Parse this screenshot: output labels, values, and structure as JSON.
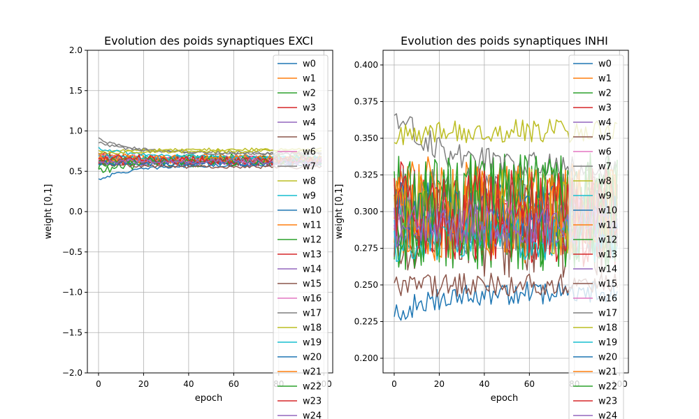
{
  "chart_data": [
    {
      "type": "line",
      "title": "Evolution des poids synaptiques EXCI",
      "xlabel": "epoch",
      "ylabel": "weight [0,1]",
      "xlim": [
        -4.95,
        103.95
      ],
      "ylim": [
        -2.0,
        2.0
      ],
      "x_ticks": [
        0,
        20,
        40,
        60,
        80,
        100
      ],
      "x_tick_labels": [
        "0",
        "20",
        "40",
        "60",
        "80",
        "100"
      ],
      "y_ticks": [
        -2.0,
        -1.5,
        -1.0,
        -0.5,
        0.0,
        0.5,
        1.0,
        1.5,
        2.0
      ],
      "y_tick_labels": [
        "−2.0",
        "−1.5",
        "−1.0",
        "−0.5",
        "0.0",
        "0.5",
        "1.0",
        "1.5",
        "2.0"
      ],
      "grid": true,
      "legend_position": "upper right, extends below axes",
      "x_range": [
        0,
        99
      ],
      "series": [
        {
          "name": "w0",
          "start": 0.4,
          "end": 0.58,
          "noise": 0.02
        },
        {
          "name": "w1",
          "start": 0.68,
          "end": 0.66,
          "noise": 0.05
        },
        {
          "name": "w2",
          "start": 0.5,
          "end": 0.62,
          "noise": 0.06
        },
        {
          "name": "w3",
          "start": 0.7,
          "end": 0.65,
          "noise": 0.05
        },
        {
          "name": "w4",
          "start": 0.62,
          "end": 0.6,
          "noise": 0.04
        },
        {
          "name": "w5",
          "start": 0.6,
          "end": 0.55,
          "noise": 0.02
        },
        {
          "name": "w6",
          "start": 0.66,
          "end": 0.65,
          "noise": 0.05
        },
        {
          "name": "w7",
          "start": 0.9,
          "end": 0.72,
          "noise": 0.02
        },
        {
          "name": "w8",
          "start": 0.74,
          "end": 0.77,
          "noise": 0.02
        },
        {
          "name": "w9",
          "start": 0.78,
          "end": 0.68,
          "noise": 0.02
        },
        {
          "name": "w10",
          "start": 0.62,
          "end": 0.63,
          "noise": 0.04
        },
        {
          "name": "w11",
          "start": 0.65,
          "end": 0.64,
          "noise": 0.05
        },
        {
          "name": "w12",
          "start": 0.58,
          "end": 0.66,
          "noise": 0.06
        },
        {
          "name": "w13",
          "start": 0.63,
          "end": 0.62,
          "noise": 0.05
        },
        {
          "name": "w14",
          "start": 0.64,
          "end": 0.63,
          "noise": 0.04
        },
        {
          "name": "w15",
          "start": 0.68,
          "end": 0.62,
          "noise": 0.06
        },
        {
          "name": "w16",
          "start": 0.66,
          "end": 0.64,
          "noise": 0.04
        },
        {
          "name": "w17",
          "start": 0.86,
          "end": 0.72,
          "noise": 0.02
        },
        {
          "name": "w18",
          "start": 0.72,
          "end": 0.75,
          "noise": 0.02
        },
        {
          "name": "w19",
          "start": 0.7,
          "end": 0.66,
          "noise": 0.03
        },
        {
          "name": "w20",
          "start": 0.6,
          "end": 0.6,
          "noise": 0.03
        },
        {
          "name": "w21",
          "start": 0.66,
          "end": 0.65,
          "noise": 0.05
        },
        {
          "name": "w22",
          "start": 0.62,
          "end": 0.63,
          "noise": 0.05
        },
        {
          "name": "w23",
          "start": 0.66,
          "end": 0.64,
          "noise": 0.06
        },
        {
          "name": "w24",
          "start": 0.62,
          "end": 0.62,
          "noise": 0.04
        }
      ]
    },
    {
      "type": "line",
      "title": "Evolution des poids synaptiques INHI",
      "xlabel": "epoch",
      "ylabel": "weight [0,1]",
      "xlim": [
        -4.95,
        103.95
      ],
      "ylim": [
        0.19,
        0.41
      ],
      "x_ticks": [
        0,
        20,
        40,
        60,
        80,
        100
      ],
      "x_tick_labels": [
        "0",
        "20",
        "40",
        "60",
        "80",
        "100"
      ],
      "y_ticks": [
        0.2,
        0.225,
        0.25,
        0.275,
        0.3,
        0.325,
        0.35,
        0.375,
        0.4
      ],
      "y_tick_labels": [
        "0.200",
        "0.225",
        "0.250",
        "0.275",
        "0.300",
        "0.325",
        "0.350",
        "0.375",
        "0.400"
      ],
      "grid": true,
      "legend_position": "upper right, extends below axes",
      "x_range": [
        0,
        99
      ],
      "series": [
        {
          "name": "w0",
          "start": 0.29,
          "end": 0.3,
          "noise": 0.02
        },
        {
          "name": "w1",
          "start": 0.31,
          "end": 0.3,
          "noise": 0.035
        },
        {
          "name": "w2",
          "start": 0.3,
          "end": 0.3,
          "noise": 0.04
        },
        {
          "name": "w3",
          "start": 0.31,
          "end": 0.29,
          "noise": 0.03
        },
        {
          "name": "w4",
          "start": 0.3,
          "end": 0.29,
          "noise": 0.015
        },
        {
          "name": "w5",
          "start": 0.29,
          "end": 0.29,
          "noise": 0.035
        },
        {
          "name": "w6",
          "start": 0.29,
          "end": 0.295,
          "noise": 0.015
        },
        {
          "name": "w7",
          "start": 0.37,
          "end": 0.33,
          "noise": 0.01
        },
        {
          "name": "w8",
          "start": 0.35,
          "end": 0.355,
          "noise": 0.008
        },
        {
          "name": "w9",
          "start": 0.3,
          "end": 0.29,
          "noise": 0.02
        },
        {
          "name": "w10",
          "start": 0.23,
          "end": 0.245,
          "noise": 0.008
        },
        {
          "name": "w11",
          "start": 0.3,
          "end": 0.3,
          "noise": 0.035
        },
        {
          "name": "w12",
          "start": 0.29,
          "end": 0.3,
          "noise": 0.04
        },
        {
          "name": "w13",
          "start": 0.3,
          "end": 0.29,
          "noise": 0.025
        },
        {
          "name": "w14",
          "start": 0.29,
          "end": 0.29,
          "noise": 0.012
        },
        {
          "name": "w15",
          "start": 0.25,
          "end": 0.25,
          "noise": 0.008
        },
        {
          "name": "w16",
          "start": 0.3,
          "end": 0.3,
          "noise": 0.012
        },
        {
          "name": "w17",
          "start": 0.3,
          "end": 0.3,
          "noise": 0.03
        },
        {
          "name": "w18",
          "start": 0.3,
          "end": 0.3,
          "noise": 0.03
        },
        {
          "name": "w19",
          "start": 0.28,
          "end": 0.28,
          "noise": 0.015
        },
        {
          "name": "w20",
          "start": 0.3,
          "end": 0.3,
          "noise": 0.02
        },
        {
          "name": "w21",
          "start": 0.3,
          "end": 0.3,
          "noise": 0.03
        },
        {
          "name": "w22",
          "start": 0.3,
          "end": 0.3,
          "noise": 0.04
        },
        {
          "name": "w23",
          "start": 0.3,
          "end": 0.3,
          "noise": 0.03
        },
        {
          "name": "w24",
          "start": 0.29,
          "end": 0.29,
          "noise": 0.015
        }
      ]
    }
  ],
  "colors": [
    "#1f77b4",
    "#ff7f0e",
    "#2ca02c",
    "#d62728",
    "#9467bd",
    "#8c564b",
    "#e377c2",
    "#7f7f7f",
    "#bcbd22",
    "#17becf"
  ]
}
